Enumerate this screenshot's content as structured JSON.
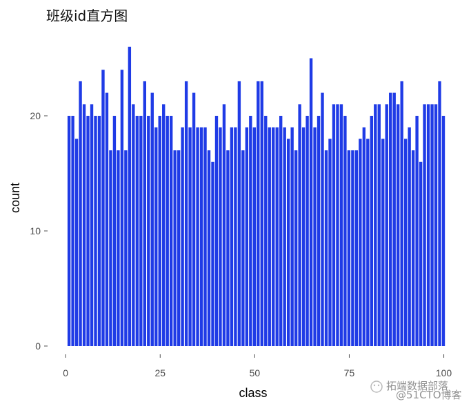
{
  "chart_data": {
    "type": "bar",
    "title": "班级id直方图",
    "xlabel": "class",
    "ylabel": "count",
    "x_ticks": [
      "0",
      "25",
      "50",
      "75",
      "100"
    ],
    "y_ticks": [
      "0",
      "10",
      "20"
    ],
    "xlim": [
      -3.5,
      103
    ],
    "ylim": [
      0,
      26
    ],
    "grid": false,
    "bar_color": "#1f3be6",
    "categories": [
      1,
      2,
      3,
      4,
      5,
      6,
      7,
      8,
      9,
      10,
      11,
      12,
      13,
      14,
      15,
      16,
      17,
      18,
      19,
      20,
      21,
      22,
      23,
      24,
      25,
      26,
      27,
      28,
      29,
      30,
      31,
      32,
      33,
      34,
      35,
      36,
      37,
      38,
      39,
      40,
      41,
      42,
      43,
      44,
      45,
      46,
      47,
      48,
      49,
      50,
      51,
      52,
      53,
      54,
      55,
      56,
      57,
      58,
      59,
      60,
      61,
      62,
      63,
      64,
      65,
      66,
      67,
      68,
      69,
      70,
      71,
      72,
      73,
      74,
      75,
      76,
      77,
      78,
      79,
      80,
      81,
      82,
      83,
      84,
      85,
      86,
      87,
      88,
      89,
      90,
      91,
      92,
      93,
      94,
      95,
      96,
      97,
      98,
      99,
      100
    ],
    "values": [
      20,
      20,
      18,
      23,
      21,
      20,
      21,
      20,
      20,
      24,
      22,
      17,
      20,
      17,
      24,
      17,
      26,
      21,
      20,
      20,
      23,
      20,
      22,
      19,
      20,
      21,
      20,
      20,
      17,
      17,
      19,
      23,
      19,
      22,
      19,
      19,
      19,
      17,
      16,
      20,
      19,
      21,
      17,
      19,
      19,
      23,
      17,
      19,
      20,
      19,
      23,
      23,
      20,
      19,
      19,
      19,
      20,
      19,
      18,
      19,
      17,
      21,
      19,
      20,
      25,
      19,
      20,
      22,
      17,
      18,
      21,
      21,
      21,
      20,
      17,
      17,
      17,
      18,
      19,
      18,
      20,
      21,
      21,
      18,
      21,
      22,
      22,
      21,
      23,
      18,
      19,
      17,
      20,
      16,
      21,
      21,
      21,
      21,
      23,
      20
    ]
  },
  "watermark": {
    "line1": "拓端数据部落",
    "line2": "@51CTO博客"
  }
}
